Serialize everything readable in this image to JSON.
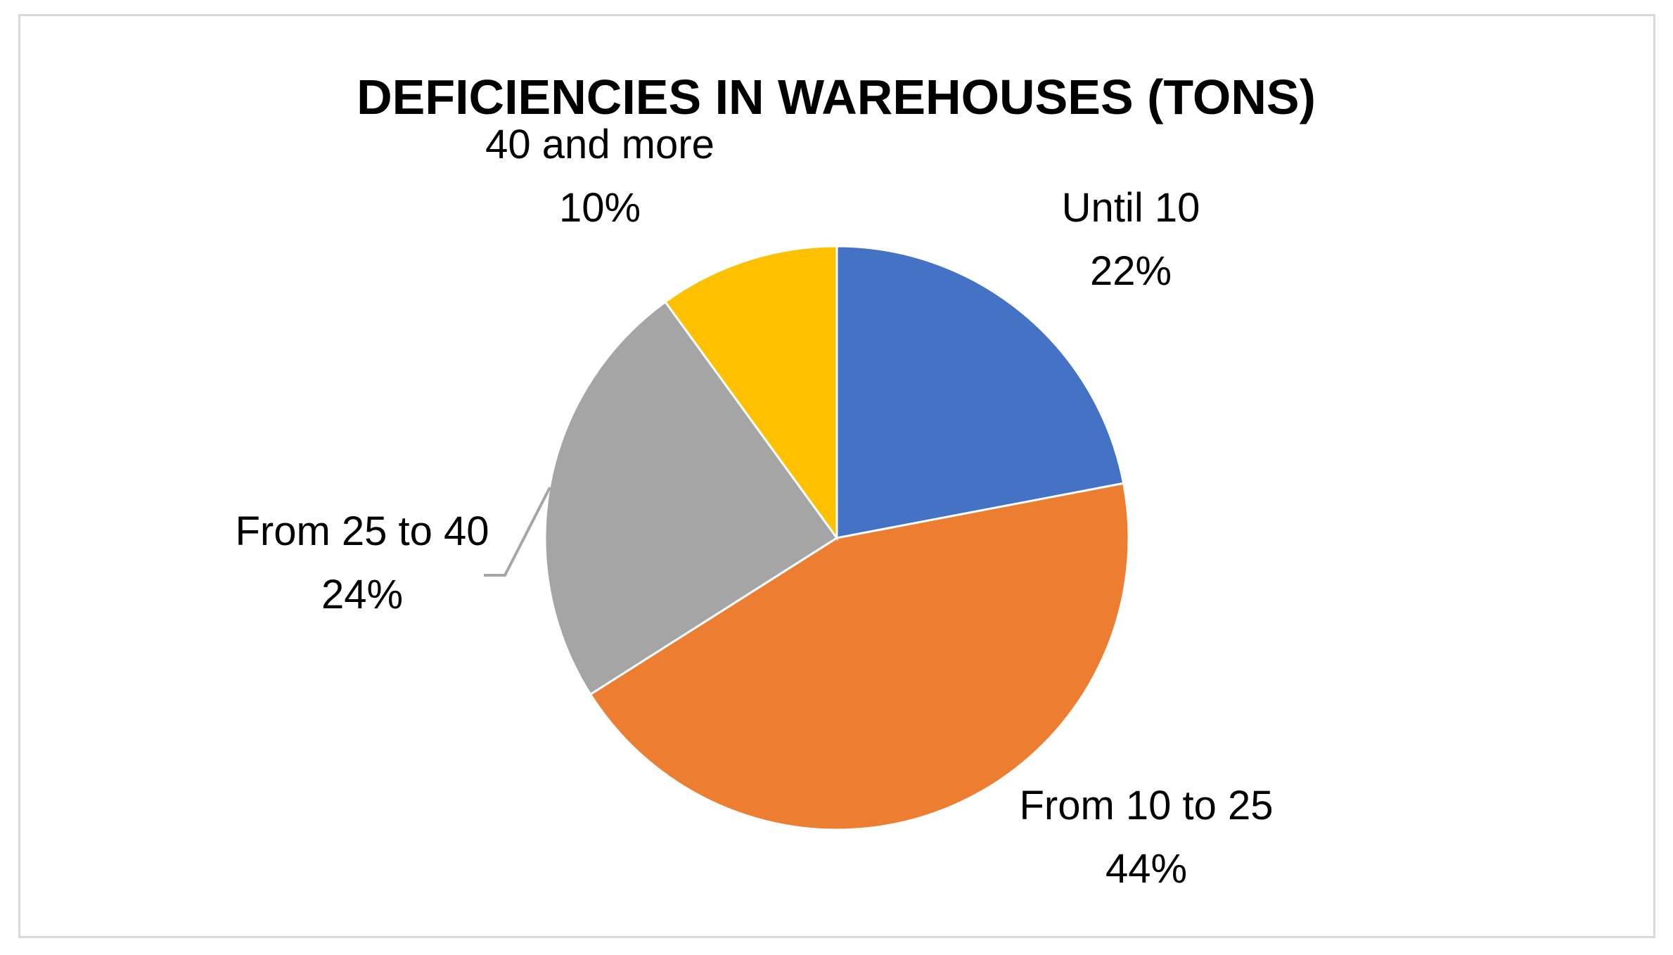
{
  "chart_data": {
    "type": "pie",
    "title": "DEFICIENCIES IN WAREHOUSES (TONS)",
    "slices": [
      {
        "label": "Until 10",
        "percent_label": "22%",
        "value": 22,
        "color": "#4472C4"
      },
      {
        "label": "From 10 to 25",
        "percent_label": "44%",
        "value": 44,
        "color": "#ED7D31"
      },
      {
        "label": "From 25 to 40",
        "percent_label": "24%",
        "value": 24,
        "color": "#A5A5A5"
      },
      {
        "label": "40 and more",
        "percent_label": "10%",
        "value": 10,
        "color": "#FFC000"
      }
    ],
    "start_angle_deg": 0,
    "direction": "clockwise",
    "legend": "none",
    "data_labels": "category and percentage"
  }
}
